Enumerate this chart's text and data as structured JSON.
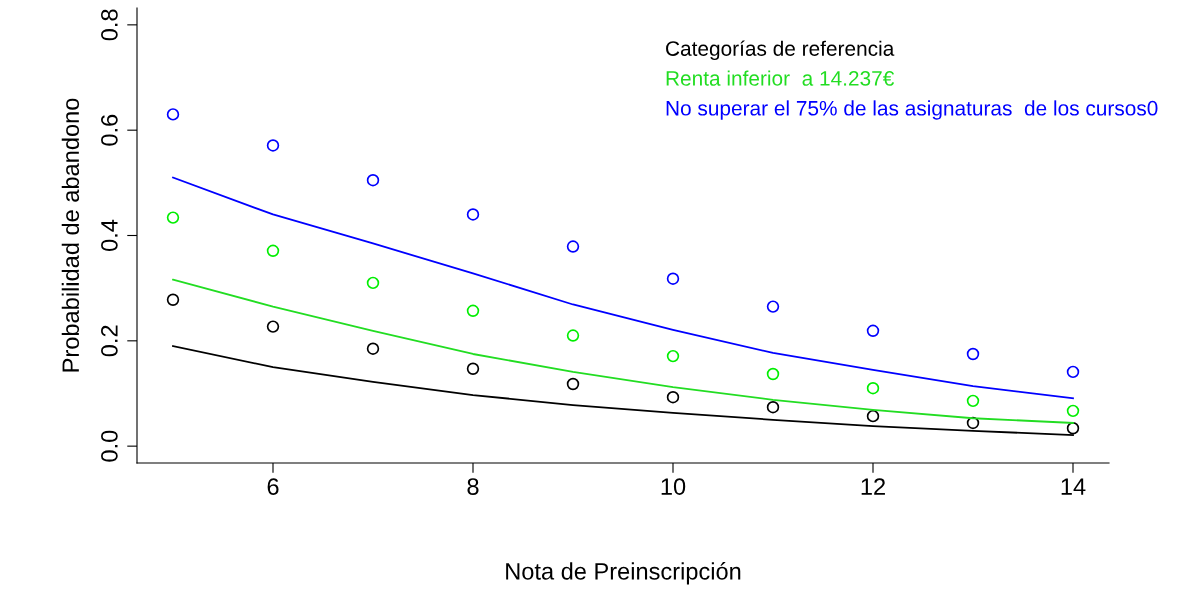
{
  "chart_data": {
    "type": "line",
    "xlabel": "Nota de Preinscripción",
    "ylabel": "Probabilidad de abandono",
    "x": [
      5,
      6,
      7,
      8,
      9,
      10,
      11,
      12,
      13,
      14
    ],
    "series": [
      {
        "name": "Categorías de referencia",
        "color": "#000000",
        "values": [
          0.19,
          0.15,
          0.122,
          0.097,
          0.078,
          0.063,
          0.05,
          0.038,
          0.029,
          0.021
        ]
      },
      {
        "name": "Renta inferior  a 14.237€",
        "color": "#22dd22",
        "values": [
          0.316,
          0.265,
          0.219,
          0.175,
          0.141,
          0.112,
          0.088,
          0.069,
          0.053,
          0.044
        ]
      },
      {
        "name": "No superar el 75% de las asignaturas  de los cursos0",
        "color": "#0000ff",
        "values": [
          0.51,
          0.44,
          0.385,
          0.328,
          0.269,
          0.221,
          0.177,
          0.145,
          0.114,
          0.091
        ]
      },
      {
        "color": "#000000",
        "type": "scatter",
        "marker": "circle",
        "values": [
          0.278,
          0.227,
          0.185,
          0.147,
          0.118,
          0.093,
          0.074,
          0.057,
          0.044,
          0.034
        ]
      },
      {
        "color": "#00ee00",
        "type": "scatter",
        "marker": "circle",
        "values": [
          0.434,
          0.371,
          0.31,
          0.257,
          0.21,
          0.171,
          0.137,
          0.11,
          0.086,
          0.067
        ]
      },
      {
        "color": "#0000ff",
        "type": "scatter",
        "marker": "circle",
        "values": [
          0.63,
          0.571,
          0.505,
          0.44,
          0.379,
          0.318,
          0.265,
          0.219,
          0.175,
          0.141
        ]
      }
    ],
    "xlim": [
      4.64,
      14.36
    ],
    "ylim": [
      -0.032,
      0.832
    ],
    "xticks": [
      6,
      8,
      10,
      12,
      14
    ],
    "yticks": [
      {
        "value": 0,
        "label": "0.0"
      },
      0.2,
      0.4,
      0.6,
      0.8
    ],
    "grid": false,
    "legend": "top right"
  }
}
